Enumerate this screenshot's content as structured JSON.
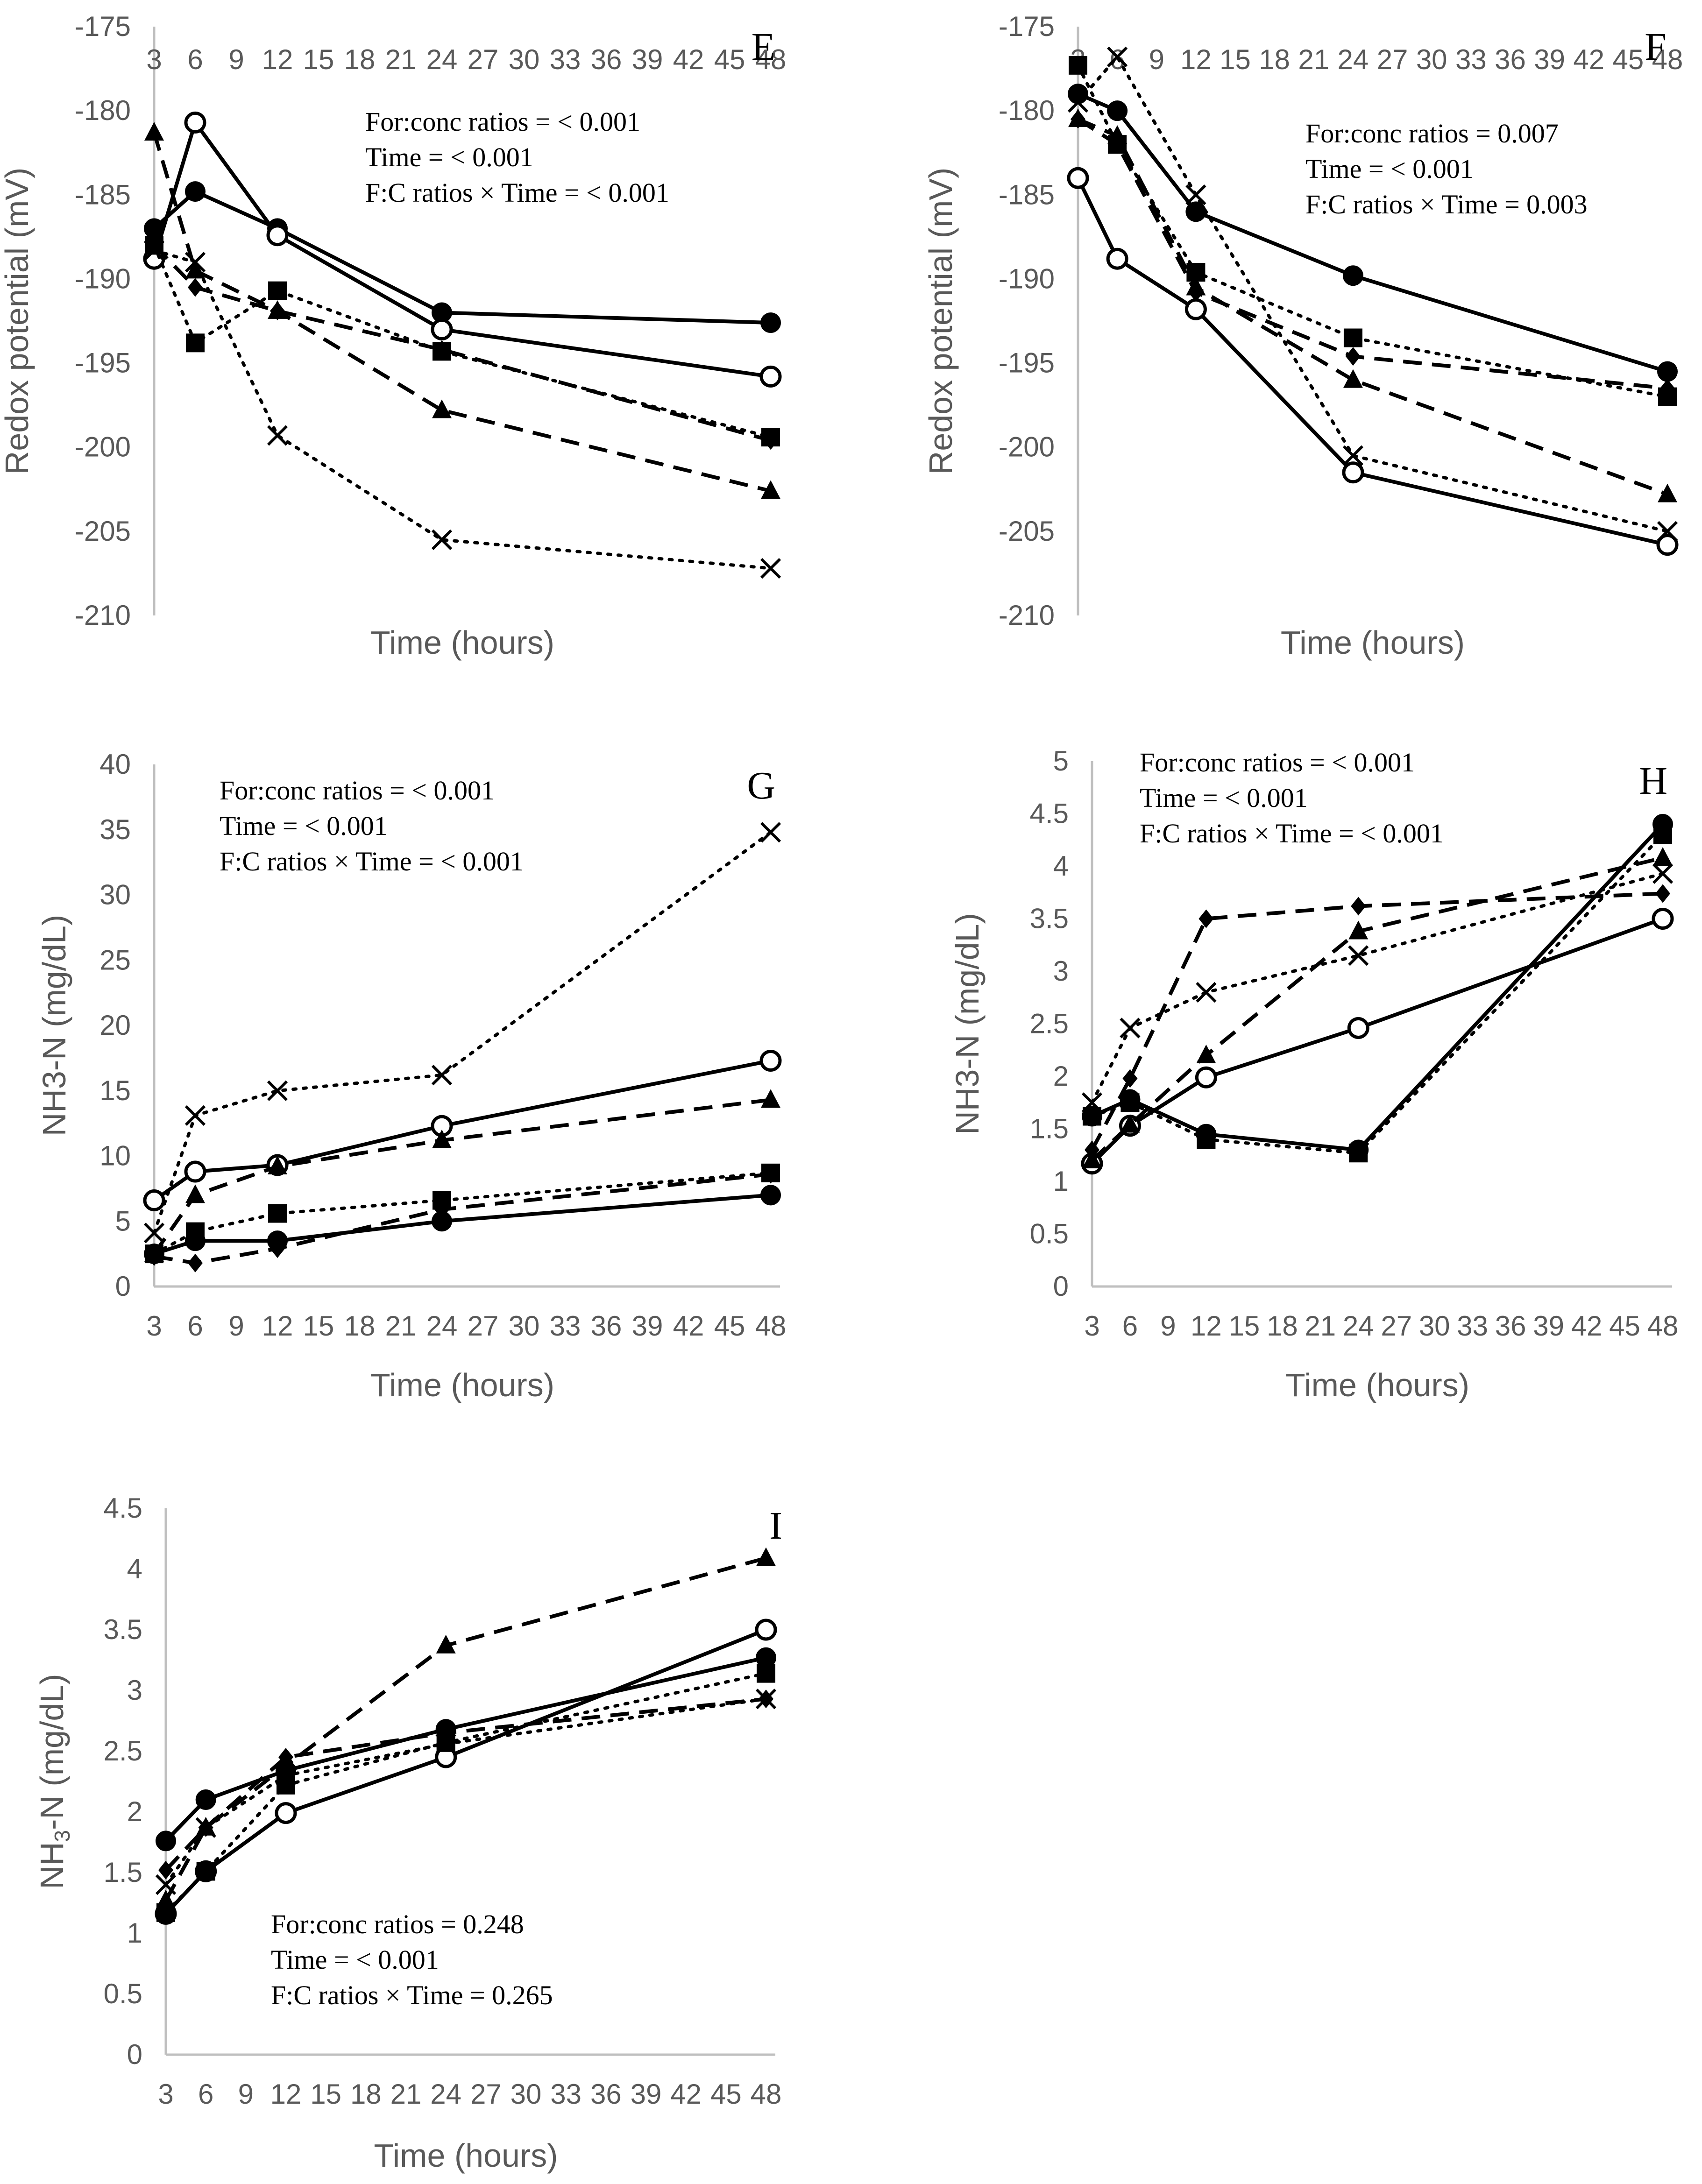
{
  "chart_data": [
    {
      "id": "E",
      "type": "line",
      "panel_label": "E",
      "xlabel": "Time (hours)",
      "ylabel": "Redox potential (mV)",
      "ylabel_sub": "",
      "ylabel_tail": "",
      "xticks": [
        "3",
        "6",
        "9",
        "12",
        "15",
        "18",
        "21",
        "24",
        "27",
        "30",
        "33",
        "36",
        "39",
        "42",
        "45",
        "48"
      ],
      "yticks": [
        "-175",
        "-180",
        "-185",
        "-190",
        "-195",
        "-200",
        "-205",
        "-210"
      ],
      "ylim": [
        -210,
        -175
      ],
      "stats": [
        "For:conc ratios = < 0.001",
        "Time = < 0.001",
        "F:C ratios  × Time = < 0.001"
      ],
      "series": [
        {
          "marker": "circle-filled",
          "dash": "solid",
          "x": [
            3,
            6,
            12,
            24,
            48
          ],
          "values": [
            -187,
            -184.8,
            -187,
            -192,
            -192.6
          ]
        },
        {
          "marker": "circle-open",
          "dash": "solid",
          "x": [
            3,
            6,
            12,
            24,
            48
          ],
          "values": [
            -188.8,
            -180.7,
            -187.4,
            -193,
            -195.8
          ]
        },
        {
          "marker": "triangle",
          "dash": "dashed",
          "x": [
            3,
            6,
            12,
            24,
            48
          ],
          "values": [
            -181.3,
            -189.5,
            -191.9,
            -197.8,
            -202.6
          ]
        },
        {
          "marker": "square",
          "dash": "dotted",
          "x": [
            3,
            6,
            12,
            24,
            48
          ],
          "values": [
            -188,
            -193.8,
            -190.7,
            -194.3,
            -199.4
          ]
        },
        {
          "marker": "diamond",
          "dash": "dashed",
          "x": [
            3,
            6,
            12,
            24,
            48
          ],
          "values": [
            -188,
            -190.5,
            -191.9,
            -194.2,
            -199.6
          ]
        },
        {
          "marker": "x",
          "dash": "dotted",
          "x": [
            3,
            6,
            12,
            24,
            48
          ],
          "values": [
            -188.3,
            -189,
            -199.3,
            -205.5,
            -207.2
          ]
        }
      ]
    },
    {
      "id": "F",
      "type": "line",
      "panel_label": "F",
      "xlabel": "Time (hours)",
      "ylabel": "Redox potential (mV)",
      "ylabel_sub": "",
      "ylabel_tail": "",
      "xticks": [
        "3",
        "6",
        "9",
        "12",
        "15",
        "18",
        "21",
        "24",
        "27",
        "30",
        "33",
        "36",
        "39",
        "42",
        "45",
        "48"
      ],
      "yticks": [
        "-175",
        "-180",
        "-185",
        "-190",
        "-195",
        "-200",
        "-205",
        "-210"
      ],
      "ylim": [
        -210,
        -175
      ],
      "stats": [
        "For:conc ratios = 0.007",
        "Time = < 0.001",
        "F:C ratios × Time = 0.003"
      ],
      "series": [
        {
          "marker": "circle-filled",
          "dash": "solid",
          "x": [
            3,
            6,
            12,
            24,
            48
          ],
          "values": [
            -179,
            -180,
            -186,
            -189.8,
            -195.5
          ]
        },
        {
          "marker": "circle-open",
          "dash": "solid",
          "x": [
            3,
            6,
            12,
            24,
            48
          ],
          "values": [
            -184,
            -188.8,
            -191.8,
            -201.5,
            -205.8
          ]
        },
        {
          "marker": "triangle",
          "dash": "dashed",
          "x": [
            3,
            6,
            12,
            24,
            48
          ],
          "values": [
            -180.5,
            -181.5,
            -190.5,
            -196,
            -202.8
          ]
        },
        {
          "marker": "square",
          "dash": "dotted",
          "x": [
            3,
            6,
            12,
            24,
            48
          ],
          "values": [
            -177.3,
            -182,
            -189.6,
            -193.5,
            -197
          ]
        },
        {
          "marker": "diamond",
          "dash": "dashed",
          "x": [
            3,
            6,
            12,
            24,
            48
          ],
          "values": [
            -180.5,
            -182,
            -190.8,
            -194.6,
            -196.5
          ]
        },
        {
          "marker": "x",
          "dash": "dotted",
          "x": [
            3,
            6,
            12,
            24,
            48
          ],
          "values": [
            -179.5,
            -176.8,
            -185,
            -200.5,
            -205
          ]
        }
      ]
    },
    {
      "id": "G",
      "type": "line",
      "panel_label": "G",
      "xlabel": "Time (hours)",
      "ylabel": "NH3-N (mg/dL)",
      "ylabel_sub": "",
      "ylabel_tail": "",
      "xticks": [
        "3",
        "6",
        "9",
        "12",
        "15",
        "18",
        "21",
        "24",
        "27",
        "30",
        "33",
        "36",
        "39",
        "42",
        "45",
        "48"
      ],
      "yticks": [
        "40",
        "35",
        "30",
        "25",
        "20",
        "15",
        "10",
        "5",
        "0"
      ],
      "ylim": [
        0,
        40
      ],
      "stats": [
        "For:conc ratios = < 0.001",
        "Time = < 0.001",
        "F:C ratios  × Time = < 0.001"
      ],
      "series": [
        {
          "marker": "circle-filled",
          "dash": "solid",
          "x": [
            3,
            6,
            12,
            24,
            48
          ],
          "values": [
            2.5,
            3.5,
            3.5,
            5,
            7
          ]
        },
        {
          "marker": "circle-open",
          "dash": "solid",
          "x": [
            3,
            6,
            12,
            24,
            48
          ],
          "values": [
            6.6,
            8.8,
            9.3,
            12.3,
            17.3
          ]
        },
        {
          "marker": "triangle",
          "dash": "dashed",
          "x": [
            3,
            6,
            12,
            24,
            48
          ],
          "values": [
            2.5,
            7,
            9.2,
            11.2,
            14.3
          ]
        },
        {
          "marker": "square",
          "dash": "dotted",
          "x": [
            3,
            6,
            12,
            24,
            48
          ],
          "values": [
            2.5,
            4.2,
            5.6,
            6.6,
            8.7
          ]
        },
        {
          "marker": "diamond",
          "dash": "dashed",
          "x": [
            3,
            6,
            12,
            24,
            48
          ],
          "values": [
            2.3,
            1.8,
            2.9,
            5.9,
            8.6
          ]
        },
        {
          "marker": "x",
          "dash": "dotted",
          "x": [
            3,
            6,
            12,
            24,
            48
          ],
          "values": [
            4.1,
            13.1,
            15,
            16.2,
            34.8
          ]
        }
      ]
    },
    {
      "id": "H",
      "type": "line",
      "panel_label": "H",
      "xlabel": "Time (hours)",
      "ylabel": "NH3-N (mg/dL)",
      "ylabel_sub": "",
      "ylabel_tail": "",
      "xticks": [
        "3",
        "6",
        "9",
        "12",
        "15",
        "18",
        "21",
        "24",
        "27",
        "30",
        "33",
        "36",
        "39",
        "42",
        "45",
        "48"
      ],
      "yticks": [
        "5",
        "4.5",
        "4",
        "3.5",
        "3",
        "2.5",
        "2",
        "1.5",
        "1",
        "0.5",
        "0"
      ],
      "ylim": [
        0,
        5
      ],
      "stats": [
        "For:conc ratios = < 0.001",
        "Time = < 0.001",
        "F:C ratios  × Time = < 0.001"
      ],
      "series": [
        {
          "marker": "circle-filled",
          "dash": "solid",
          "x": [
            3,
            6,
            12,
            24,
            48
          ],
          "values": [
            1.62,
            1.78,
            1.45,
            1.3,
            4.4
          ]
        },
        {
          "marker": "circle-open",
          "dash": "solid",
          "x": [
            3,
            6,
            12,
            24,
            48
          ],
          "values": [
            1.17,
            1.53,
            1.99,
            2.46,
            3.5
          ]
        },
        {
          "marker": "triangle",
          "dash": "dashed",
          "x": [
            3,
            6,
            12,
            24,
            48
          ],
          "values": [
            1.2,
            1.54,
            2.2,
            3.38,
            4.08
          ]
        },
        {
          "marker": "square",
          "dash": "dotted",
          "x": [
            3,
            6,
            12,
            24,
            48
          ],
          "values": [
            1.62,
            1.75,
            1.4,
            1.27,
            4.3
          ]
        },
        {
          "marker": "diamond",
          "dash": "dashed",
          "x": [
            3,
            6,
            12,
            24,
            48
          ],
          "values": [
            1.3,
            1.98,
            3.5,
            3.62,
            3.74
          ]
        },
        {
          "marker": "x",
          "dash": "dotted",
          "x": [
            3,
            6,
            12,
            24,
            48
          ],
          "values": [
            1.75,
            2.46,
            2.8,
            3.15,
            3.93
          ]
        }
      ]
    },
    {
      "id": "I",
      "type": "line",
      "panel_label": "I",
      "xlabel": "Time (hours)",
      "ylabel": "NH",
      "ylabel_sub": "3",
      "ylabel_tail": "-N (mg/dL)",
      "xticks": [
        "3",
        "6",
        "9",
        "12",
        "15",
        "18",
        "21",
        "24",
        "27",
        "30",
        "33",
        "36",
        "39",
        "42",
        "45",
        "48"
      ],
      "yticks": [
        "4.5",
        "4",
        "3.5",
        "3",
        "2.5",
        "2",
        "1.5",
        "1",
        "0.5",
        "0"
      ],
      "ylim": [
        0,
        4.5
      ],
      "stats": [
        "For:conc ratios = 0.248",
        "Time = < 0.001",
        "F:C ratios  × Time = 0.265"
      ],
      "series": [
        {
          "marker": "circle-filled",
          "dash": "solid",
          "x": [
            3,
            6,
            12,
            24,
            48
          ],
          "values": [
            1.76,
            2.1,
            2.34,
            2.68,
            3.27
          ]
        },
        {
          "marker": "circle-open",
          "dash": "solid",
          "x": [
            3,
            6,
            12,
            24,
            48
          ],
          "values": [
            1.16,
            1.51,
            1.99,
            2.45,
            3.5
          ]
        },
        {
          "marker": "triangle",
          "dash": "dashed",
          "x": [
            3,
            6,
            12,
            24,
            48
          ],
          "values": [
            1.27,
            1.87,
            2.38,
            3.37,
            4.09
          ]
        },
        {
          "marker": "square",
          "dash": "dotted",
          "x": [
            3,
            6,
            12,
            24,
            48
          ],
          "values": [
            1.17,
            1.51,
            2.22,
            2.57,
            3.14
          ]
        },
        {
          "marker": "diamond",
          "dash": "dashed",
          "x": [
            3,
            6,
            12,
            24,
            48
          ],
          "values": [
            1.52,
            1.87,
            2.45,
            2.65,
            2.93
          ]
        },
        {
          "marker": "x",
          "dash": "dotted",
          "x": [
            3,
            6,
            12,
            24,
            48
          ],
          "values": [
            1.4,
            1.87,
            2.3,
            2.56,
            2.93
          ]
        }
      ]
    }
  ]
}
